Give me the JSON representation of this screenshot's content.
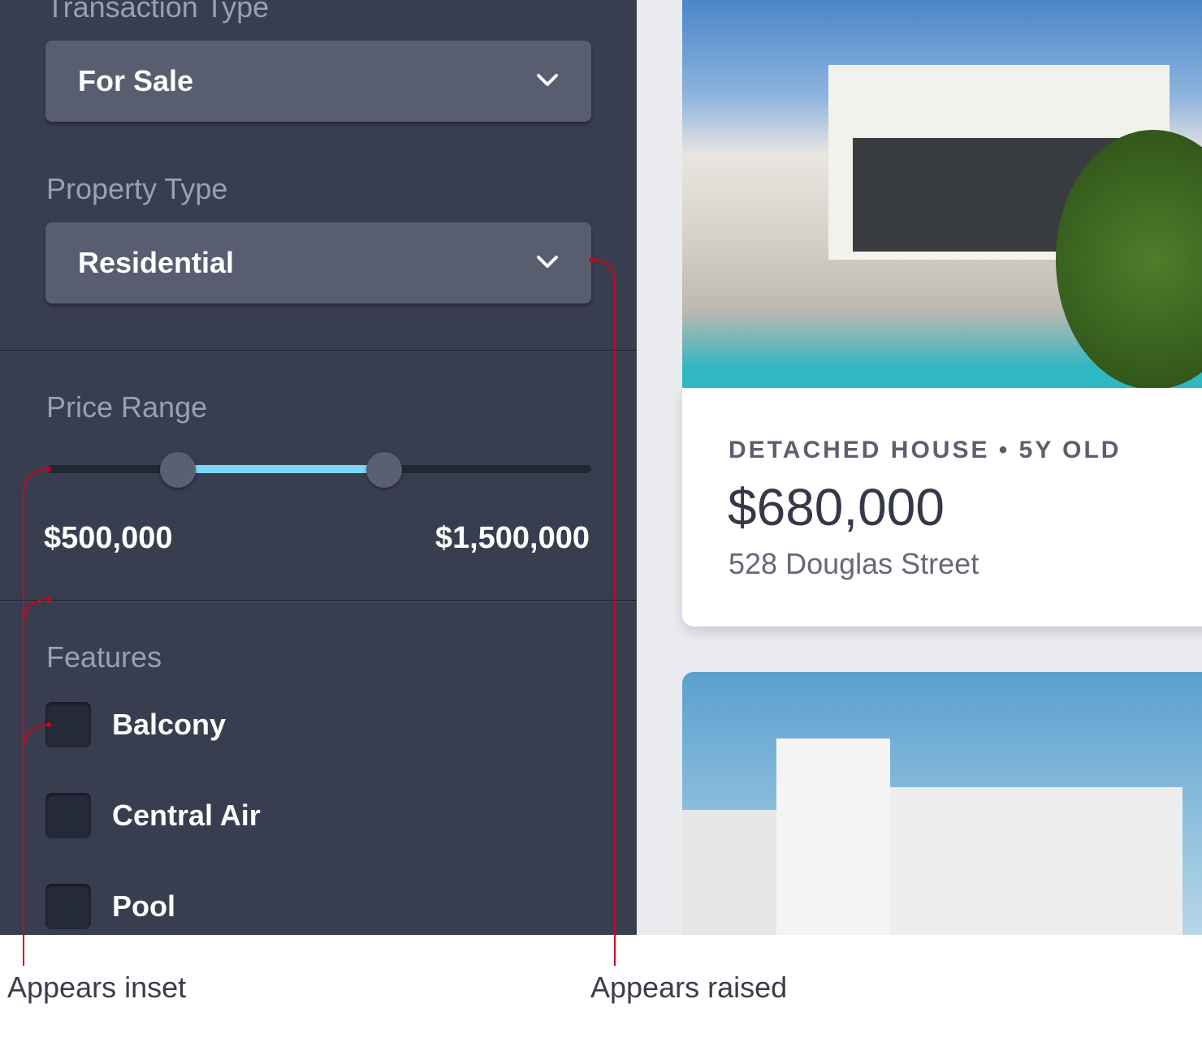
{
  "filters": {
    "transaction_type": {
      "label": "Transaction Type",
      "value": "For Sale"
    },
    "property_type": {
      "label": "Property Type",
      "value": "Residential"
    },
    "price_range": {
      "label": "Price Range",
      "min_label": "$500,000",
      "max_label": "$1,500,000",
      "slider_low_fraction": 0.24,
      "slider_high_fraction": 0.62
    },
    "features": {
      "label": "Features",
      "items": [
        {
          "label": "Balcony",
          "checked": false
        },
        {
          "label": "Central Air",
          "checked": false
        },
        {
          "label": "Pool",
          "checked": false
        }
      ]
    }
  },
  "listing": {
    "kicker": "DETACHED HOUSE • 5Y OLD",
    "price": "$680,000",
    "address": "528 Douglas Street"
  },
  "annotations": {
    "inset": "Appears inset",
    "raised": "Appears raised"
  },
  "colors": {
    "panel": "#383e50",
    "accent": "#7dd6f5",
    "annotation": "#d0021b"
  }
}
